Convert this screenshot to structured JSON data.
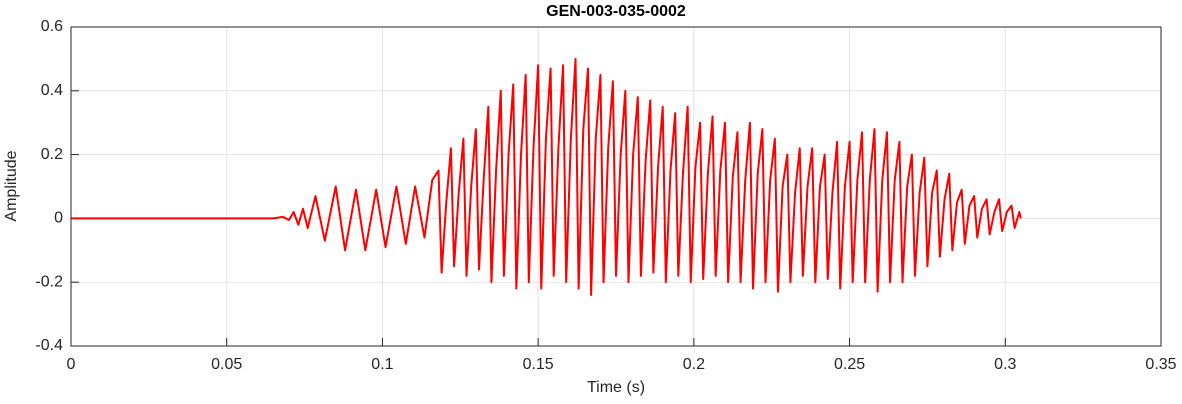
{
  "chart_data": {
    "type": "line",
    "title": "GEN-003-035-0002",
    "x_label": "Time (s)",
    "y_label": "Amplitude",
    "xlim": [
      0,
      0.35
    ],
    "xticks": [
      0,
      0.05,
      0.1,
      0.15,
      0.2,
      0.25,
      0.3,
      0.35
    ],
    "ylim": [
      -0.4,
      0.6
    ],
    "yticks": [
      -0.4,
      -0.2,
      0,
      0.2,
      0.4,
      0.6
    ],
    "grid": true,
    "series": [
      {
        "color": "#ff0000",
        "x": [
          0,
          0.065,
          0.068,
          0.07,
          0.0715,
          0.073,
          0.0745,
          0.076,
          0.0785,
          0.0815,
          0.085,
          0.088,
          0.0915,
          0.0945,
          0.098,
          0.101,
          0.1045,
          0.1075,
          0.1105,
          0.1135,
          0.116,
          0.118,
          0.119,
          0.1205,
          0.122,
          0.123,
          0.1245,
          0.126,
          0.127,
          0.1285,
          0.13,
          0.131,
          0.1325,
          0.134,
          0.135,
          0.1365,
          0.138,
          0.139,
          0.1405,
          0.142,
          0.143,
          0.1445,
          0.146,
          0.147,
          0.1485,
          0.15,
          0.151,
          0.1525,
          0.154,
          0.155,
          0.1565,
          0.158,
          0.159,
          0.1605,
          0.162,
          0.163,
          0.1645,
          0.166,
          0.167,
          0.1685,
          0.17,
          0.171,
          0.1725,
          0.174,
          0.175,
          0.1765,
          0.178,
          0.179,
          0.1805,
          0.182,
          0.183,
          0.1845,
          0.186,
          0.187,
          0.1885,
          0.19,
          0.191,
          0.1925,
          0.194,
          0.195,
          0.1965,
          0.198,
          0.199,
          0.2005,
          0.202,
          0.203,
          0.2045,
          0.206,
          0.207,
          0.2085,
          0.21,
          0.211,
          0.2125,
          0.214,
          0.215,
          0.2165,
          0.218,
          0.219,
          0.2205,
          0.222,
          0.223,
          0.2245,
          0.226,
          0.227,
          0.2285,
          0.23,
          0.231,
          0.2325,
          0.234,
          0.235,
          0.2365,
          0.238,
          0.239,
          0.2405,
          0.242,
          0.243,
          0.2445,
          0.246,
          0.247,
          0.2485,
          0.25,
          0.251,
          0.2525,
          0.254,
          0.255,
          0.2565,
          0.258,
          0.259,
          0.2605,
          0.262,
          0.263,
          0.2645,
          0.266,
          0.267,
          0.2685,
          0.27,
          0.271,
          0.2725,
          0.274,
          0.275,
          0.2765,
          0.278,
          0.279,
          0.2805,
          0.282,
          0.283,
          0.2845,
          0.286,
          0.287,
          0.2885,
          0.29,
          0.291,
          0.2925,
          0.294,
          0.295,
          0.2965,
          0.298,
          0.299,
          0.3005,
          0.302,
          0.303,
          0.3045,
          0.305
        ],
        "values": [
          0,
          0,
          0.005,
          -0.005,
          0.02,
          -0.02,
          0.03,
          -0.03,
          0.07,
          -0.07,
          0.1,
          -0.1,
          0.09,
          -0.1,
          0.09,
          -0.09,
          0.1,
          -0.08,
          0.1,
          -0.06,
          0.12,
          0.15,
          -0.17,
          0.05,
          0.22,
          -0.15,
          0.08,
          0.25,
          -0.18,
          0.1,
          0.28,
          -0.16,
          0.12,
          0.35,
          -0.2,
          0.15,
          0.4,
          -0.18,
          0.2,
          0.42,
          -0.22,
          0.2,
          0.45,
          -0.2,
          0.22,
          0.48,
          -0.22,
          0.25,
          0.47,
          -0.18,
          0.22,
          0.48,
          -0.2,
          0.25,
          0.5,
          -0.22,
          0.28,
          0.47,
          -0.24,
          0.25,
          0.45,
          -0.2,
          0.22,
          0.43,
          -0.18,
          0.2,
          0.4,
          -0.2,
          0.2,
          0.38,
          -0.18,
          0.18,
          0.37,
          -0.17,
          0.16,
          0.35,
          -0.2,
          0.15,
          0.33,
          -0.18,
          0.14,
          0.35,
          -0.2,
          0.16,
          0.3,
          -0.19,
          0.14,
          0.32,
          -0.18,
          0.15,
          0.3,
          -0.2,
          0.13,
          0.27,
          -0.2,
          0.12,
          0.3,
          -0.22,
          0.14,
          0.28,
          -0.2,
          0.12,
          0.25,
          -0.23,
          0.1,
          0.2,
          -0.2,
          0.08,
          0.22,
          -0.18,
          0.1,
          0.22,
          -0.2,
          0.1,
          0.2,
          -0.19,
          0.08,
          0.24,
          -0.22,
          0.1,
          0.24,
          -0.2,
          0.12,
          0.27,
          -0.2,
          0.12,
          0.28,
          -0.23,
          0.12,
          0.27,
          -0.2,
          0.12,
          0.24,
          -0.2,
          0.1,
          0.2,
          -0.18,
          0.08,
          0.19,
          -0.15,
          0.08,
          0.15,
          -0.12,
          0.06,
          0.14,
          -0.1,
          0.05,
          0.09,
          -0.08,
          0.04,
          0.07,
          -0.06,
          0.03,
          0.06,
          -0.05,
          0.02,
          0.06,
          -0.04,
          0.02,
          0.04,
          -0.03,
          0.02,
          0
        ]
      }
    ]
  }
}
